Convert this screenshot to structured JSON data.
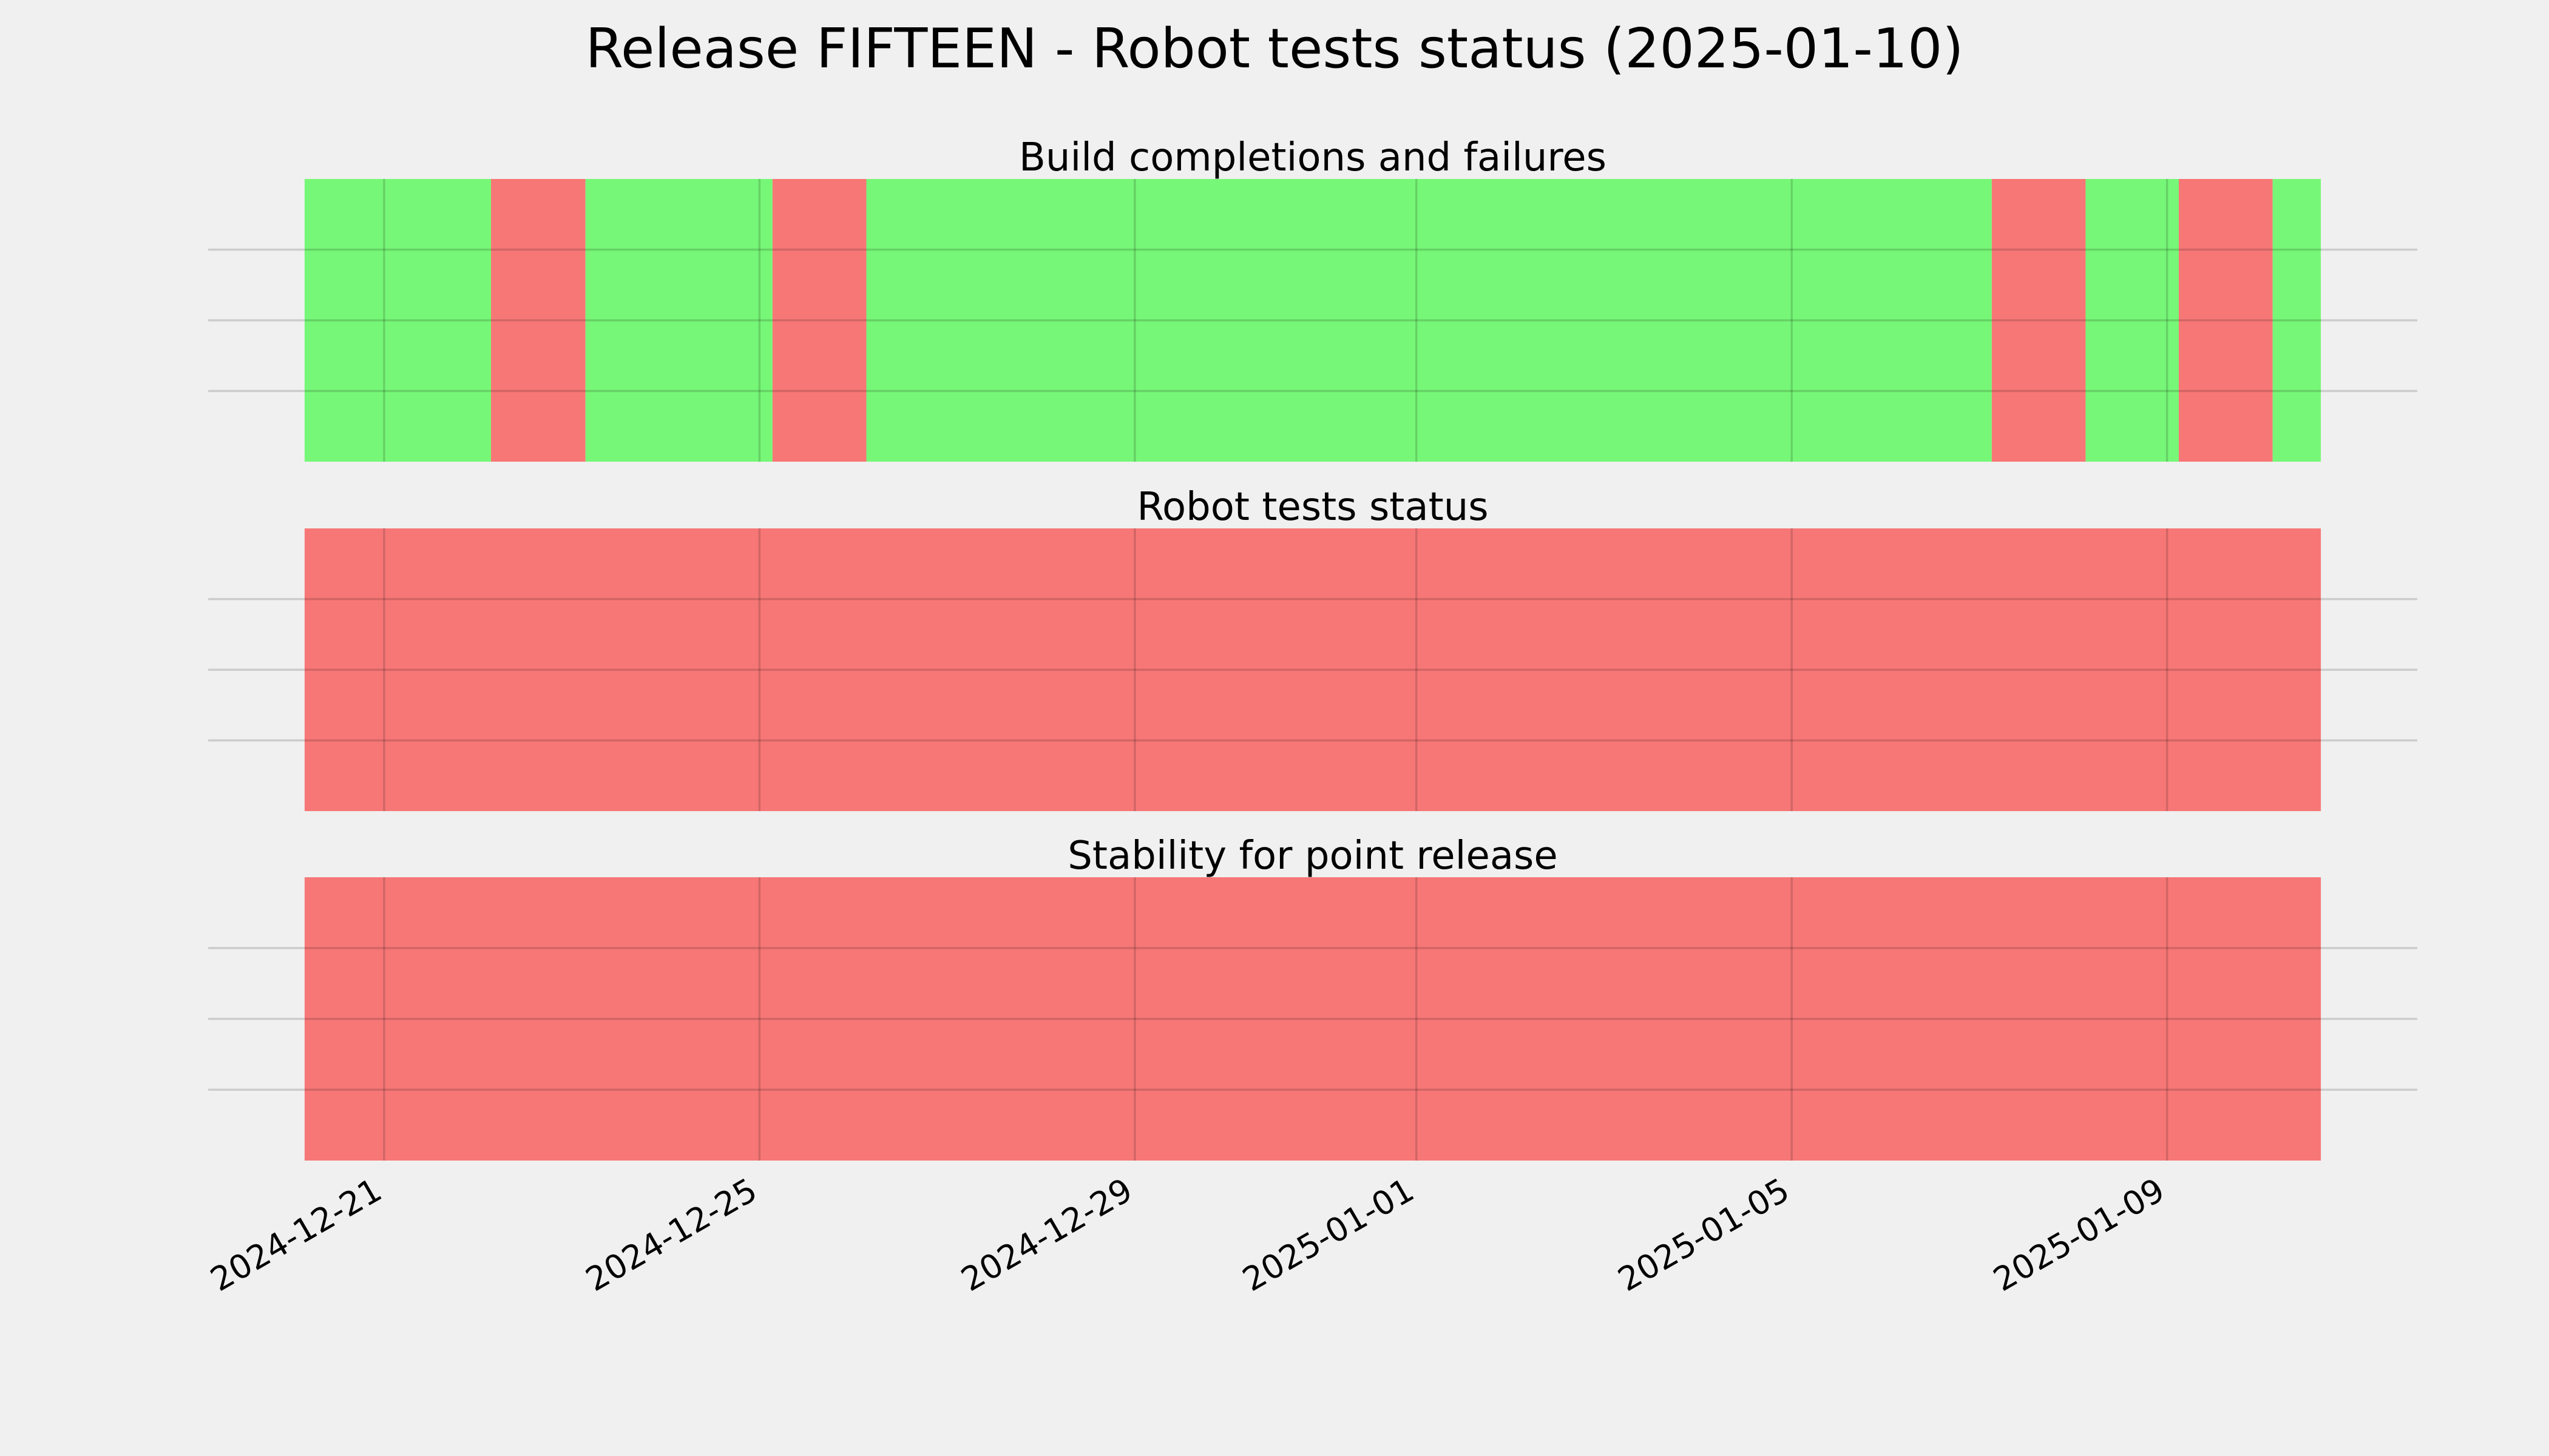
{
  "title": "Release FIFTEEN - Robot tests status (2025-01-10)",
  "chart_data": [
    {
      "type": "timeline",
      "title": "Build completions and failures",
      "segments": [
        {
          "start": "2024-12-20T03:40",
          "end": "2024-12-22T03:20",
          "color": "#77f777"
        },
        {
          "start": "2024-12-22T03:20",
          "end": "2024-12-23T03:30",
          "color": "#f77777"
        },
        {
          "start": "2024-12-23T03:30",
          "end": "2024-12-25T03:20",
          "color": "#77f777"
        },
        {
          "start": "2024-12-25T03:20",
          "end": "2024-12-26T03:20",
          "color": "#f77777"
        },
        {
          "start": "2024-12-26T03:20",
          "end": "2025-01-07T03:10",
          "color": "#77f777"
        },
        {
          "start": "2025-01-07T03:10",
          "end": "2025-01-08T03:10",
          "color": "#f77777"
        },
        {
          "start": "2025-01-08T03:10",
          "end": "2025-01-09T03:00",
          "color": "#77f777"
        },
        {
          "start": "2025-01-09T03:00",
          "end": "2025-01-10T03:00",
          "color": "#f77777"
        },
        {
          "start": "2025-01-10T03:00",
          "end": "2025-01-10T15:20",
          "color": "#77f777"
        }
      ],
      "xlim": [
        "2024-12-19T03:00",
        "2025-01-11T16:00"
      ],
      "xticks": [
        "2024-12-21",
        "2024-12-25",
        "2024-12-29",
        "2025-01-01",
        "2025-01-05",
        "2025-01-09"
      ],
      "ylim": [
        0,
        1
      ],
      "yticks": [
        0.25,
        0.5,
        0.75
      ],
      "grid": true
    },
    {
      "type": "timeline",
      "title": "Robot tests status",
      "segments": [
        {
          "start": "2024-12-20T03:40",
          "end": "2025-01-10T15:20",
          "color": "#f77777"
        }
      ],
      "xlim": [
        "2024-12-19T03:00",
        "2025-01-11T16:00"
      ],
      "xticks": [
        "2024-12-21",
        "2024-12-25",
        "2024-12-29",
        "2025-01-01",
        "2025-01-05",
        "2025-01-09"
      ],
      "ylim": [
        0,
        1
      ],
      "yticks": [
        0.25,
        0.5,
        0.75
      ],
      "grid": true
    },
    {
      "type": "timeline",
      "title": "Stability for point release",
      "segments": [
        {
          "start": "2024-12-20T03:40",
          "end": "2025-01-10T15:20",
          "color": "#f77777"
        }
      ],
      "xlim": [
        "2024-12-19T03:00",
        "2025-01-11T16:00"
      ],
      "xticks": [
        "2024-12-21",
        "2024-12-25",
        "2024-12-29",
        "2025-01-01",
        "2025-01-05",
        "2025-01-09"
      ],
      "ylim": [
        0,
        1
      ],
      "yticks": [
        0.25,
        0.5,
        0.75
      ],
      "grid": true
    }
  ]
}
